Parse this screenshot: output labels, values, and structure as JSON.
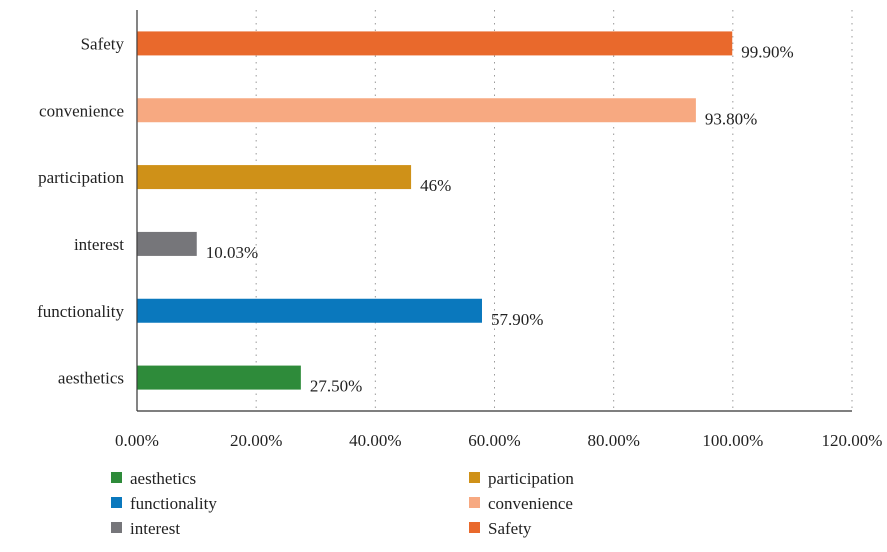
{
  "chart_data": {
    "type": "bar",
    "orientation": "horizontal",
    "categories": [
      "aesthetics",
      "functionality",
      "interest",
      "participation",
      "convenience",
      "Safety"
    ],
    "values": [
      27.5,
      57.9,
      10.03,
      46,
      93.8,
      99.9
    ],
    "value_labels": [
      "27.50%",
      "57.90%",
      "10.03%",
      "46%",
      "93.80%",
      "99.90%"
    ],
    "colors": [
      "#2e8b3a",
      "#0a78bd",
      "#76767a",
      "#cf9118",
      "#f7a981",
      "#e9692c"
    ],
    "xlim": [
      0,
      120
    ],
    "xticks": [
      0,
      20,
      40,
      60,
      80,
      100,
      120
    ],
    "xtick_labels": [
      "0.00%",
      "20.00%",
      "40.00%",
      "60.00%",
      "80.00%",
      "100.00%",
      "120.00%"
    ],
    "title": "",
    "xlabel": "",
    "ylabel": "",
    "grid": "vertical-dotted",
    "legend": {
      "placement": "bottom",
      "columns": [
        [
          "aesthetics",
          "functionality",
          "interest"
        ],
        [
          "participation",
          "convenience",
          "Safety"
        ]
      ]
    }
  }
}
